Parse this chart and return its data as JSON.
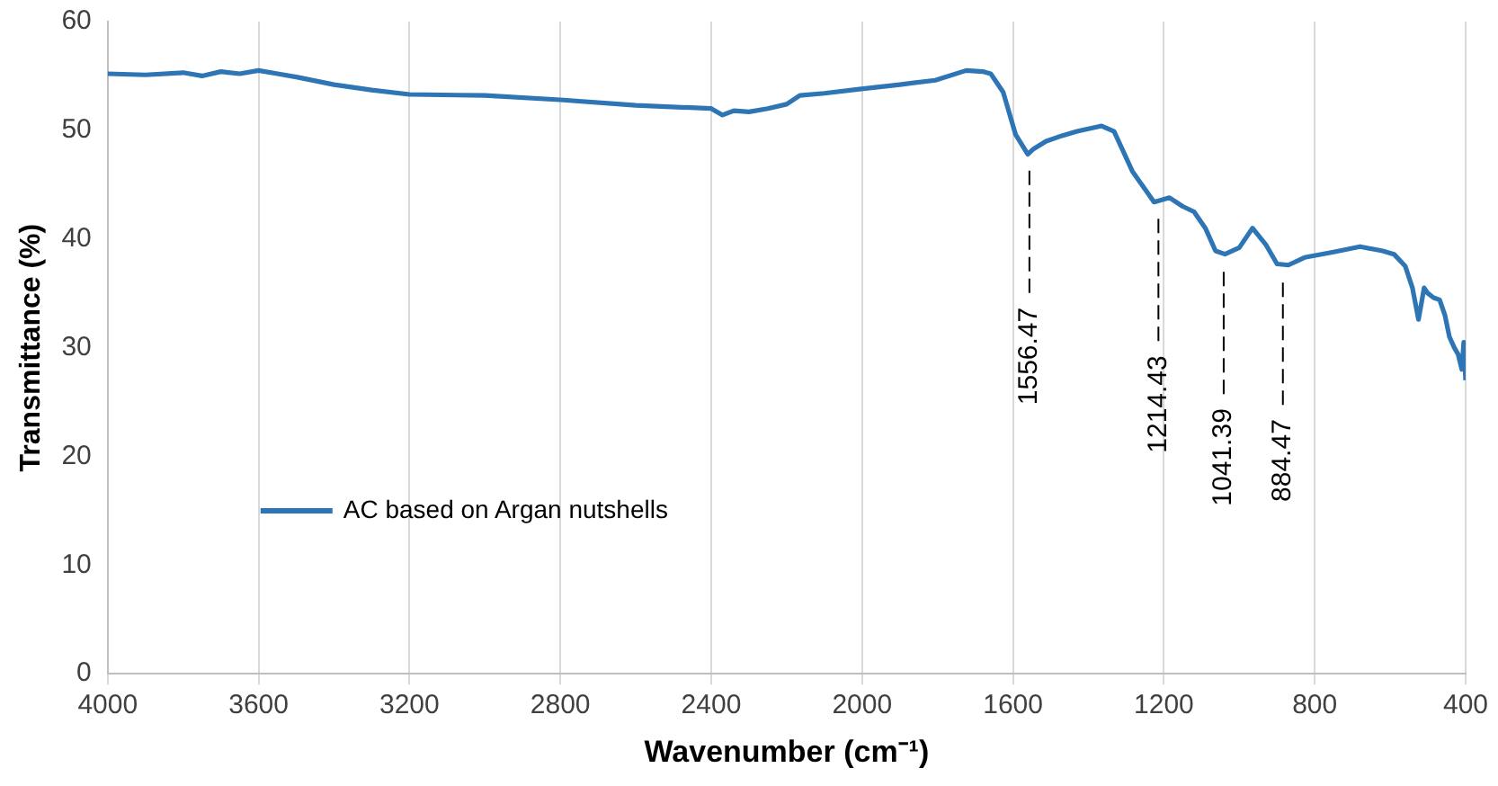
{
  "chart_data": {
    "type": "line",
    "xlabel": "Wavenumber (cm⁻¹)",
    "ylabel": "Transmittance (%)",
    "xlim": [
      4000,
      400
    ],
    "xticks": [
      4000,
      3600,
      3200,
      2800,
      2400,
      2000,
      1600,
      1200,
      800,
      400
    ],
    "ylim": [
      0,
      60
    ],
    "yticks": [
      0,
      10,
      20,
      30,
      40,
      50,
      60
    ],
    "grid": "x",
    "legend": "bottom left",
    "marker": "none",
    "line_style": "solid",
    "series": [
      {
        "name": "AC based on Argan nutshells",
        "color": "#2e75b6",
        "x": [
          4000,
          3900,
          3800,
          3750,
          3700,
          3650,
          3600,
          3550,
          3500,
          3400,
          3300,
          3200,
          3000,
          2800,
          2600,
          2400,
          2370,
          2340,
          2300,
          2250,
          2200,
          2165,
          2100,
          2002,
          1900,
          1806,
          1724,
          1680,
          1659,
          1626,
          1593,
          1561,
          1545,
          1512,
          1470,
          1430,
          1365,
          1332,
          1283,
          1226,
          1185,
          1150,
          1120,
          1090,
          1063,
          1038,
          1000,
          965,
          930,
          900,
          870,
          827,
          750,
          680,
          620,
          590,
          560,
          541,
          525,
          510,
          500,
          485,
          469,
          455,
          443,
          430,
          420,
          410,
          405,
          400
        ],
        "values": [
          55.2,
          55.1,
          55.3,
          55.0,
          55.4,
          55.2,
          55.5,
          55.2,
          54.9,
          54.2,
          53.7,
          53.3,
          53.2,
          52.8,
          52.3,
          52.0,
          51.4,
          51.8,
          51.7,
          52.0,
          52.4,
          53.2,
          53.4,
          53.8,
          54.2,
          54.6,
          55.5,
          55.4,
          55.2,
          53.5,
          49.6,
          47.8,
          48.3,
          49.0,
          49.5,
          49.9,
          50.4,
          49.9,
          46.2,
          43.4,
          43.8,
          43.0,
          42.5,
          41.0,
          38.9,
          38.6,
          39.2,
          41.0,
          39.5,
          37.7,
          37.6,
          38.3,
          38.8,
          39.3,
          38.9,
          38.6,
          37.5,
          35.5,
          32.6,
          35.5,
          35.0,
          34.6,
          34.4,
          33.0,
          31.0,
          30.0,
          29.4,
          28.0,
          30.5,
          27.0
        ]
      }
    ],
    "ref_lines": [
      {
        "axis": "x",
        "value": 1556.47,
        "label": "1556.47",
        "line_style": "dashed",
        "color": "#000000"
      },
      {
        "axis": "x",
        "value": 1214.43,
        "label": "1214.43",
        "line_style": "dashed",
        "color": "#000000"
      },
      {
        "axis": "x",
        "value": 1041.39,
        "label": "1041.39",
        "line_style": "dashed",
        "color": "#000000"
      },
      {
        "axis": "x",
        "value": 884.47,
        "label": "884.47",
        "line_style": "dashed",
        "color": "#000000"
      }
    ]
  }
}
